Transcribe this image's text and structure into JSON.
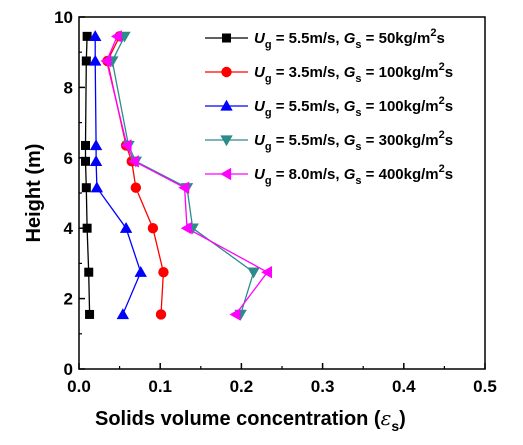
{
  "chart_data": {
    "type": "line",
    "xlabel": "Solids volume concentration (",
    "xlabel_symbol": "ε",
    "xlabel_sub": "s",
    "xlabel_close": ")",
    "ylabel": "Height (m)",
    "xlim": [
      0.0,
      0.5
    ],
    "ylim": [
      0,
      10
    ],
    "x_ticks": [
      "0.0",
      "0.1",
      "0.2",
      "0.3",
      "0.4",
      "0.5"
    ],
    "y_ticks": [
      "0",
      "2",
      "4",
      "6",
      "8",
      "10"
    ],
    "legend_position": "top-right",
    "series": [
      {
        "name": "U_g = 5.5m/s, G_s = 50kg/m^2s",
        "label": {
          "u": "U",
          "u_sub": "g",
          "mid": " = 5.5m/s, ",
          "g": "G",
          "g_sub": "s",
          "tail": " = 50kg/m",
          "sup": "2",
          "end": "s"
        },
        "color": "#000000",
        "marker": "square",
        "points": [
          [
            0.013,
            1.55
          ],
          [
            0.012,
            2.75
          ],
          [
            0.01,
            4.0
          ],
          [
            0.009,
            5.15
          ],
          [
            0.008,
            5.9
          ],
          [
            0.008,
            6.35
          ],
          [
            0.009,
            8.75
          ],
          [
            0.01,
            9.45
          ]
        ]
      },
      {
        "name": "U_g = 3.5m/s, G_s = 100kg/m^2s",
        "label": {
          "u": "U",
          "u_sub": "g",
          "mid": " = 3.5m/s, ",
          "g": "G",
          "g_sub": "s",
          "tail": " = 100kg/m",
          "sup": "2",
          "end": "s"
        },
        "color": "#ff0000",
        "marker": "circle",
        "points": [
          [
            0.101,
            1.55
          ],
          [
            0.104,
            2.75
          ],
          [
            0.091,
            4.0
          ],
          [
            0.07,
            5.15
          ],
          [
            0.065,
            5.9
          ],
          [
            0.058,
            6.35
          ],
          [
            0.035,
            8.75
          ],
          [
            0.05,
            9.45
          ]
        ]
      },
      {
        "name": "U_g = 5.5m/s, G_s = 100kg/m^2s",
        "label": {
          "u": "U",
          "u_sub": "g",
          "mid": " = 5.5m/s, ",
          "g": "G",
          "g_sub": "s",
          "tail": " = 100kg/m",
          "sup": "2",
          "end": "s"
        },
        "color": "#0000ff",
        "marker": "triangle-up",
        "points": [
          [
            0.054,
            1.55
          ],
          [
            0.076,
            2.75
          ],
          [
            0.058,
            4.0
          ],
          [
            0.022,
            5.15
          ],
          [
            0.021,
            5.9
          ],
          [
            0.021,
            6.35
          ],
          [
            0.02,
            8.75
          ],
          [
            0.02,
            9.45
          ]
        ]
      },
      {
        "name": "U_g = 5.5m/s, G_s = 300kg/m^2s",
        "label": {
          "u": "U",
          "u_sub": "g",
          "mid": " = 5.5m/s, ",
          "g": "G",
          "g_sub": "s",
          "tail": " = 300kg/m",
          "sup": "2",
          "end": "s"
        },
        "color": "#2e8b8b",
        "marker": "triangle-down",
        "points": [
          [
            0.199,
            1.55
          ],
          [
            0.215,
            2.75
          ],
          [
            0.14,
            4.0
          ],
          [
            0.133,
            5.15
          ],
          [
            0.07,
            5.9
          ],
          [
            0.061,
            6.35
          ],
          [
            0.041,
            8.75
          ],
          [
            0.056,
            9.45
          ]
        ]
      },
      {
        "name": "U_g = 8.0m/s, G_s = 400kg/m^2s",
        "label": {
          "u": "U",
          "u_sub": "g",
          "mid": " = 8.0m/s, ",
          "g": "G",
          "g_sub": "s",
          "tail": " = 400kg/m",
          "sup": "2",
          "end": "s"
        },
        "color": "#ff00ff",
        "marker": "triangle-left",
        "points": [
          [
            0.193,
            1.55
          ],
          [
            0.232,
            2.75
          ],
          [
            0.133,
            4.0
          ],
          [
            0.13,
            5.15
          ],
          [
            0.068,
            5.9
          ],
          [
            0.059,
            6.35
          ],
          [
            0.034,
            8.75
          ],
          [
            0.047,
            9.45
          ]
        ]
      }
    ]
  }
}
